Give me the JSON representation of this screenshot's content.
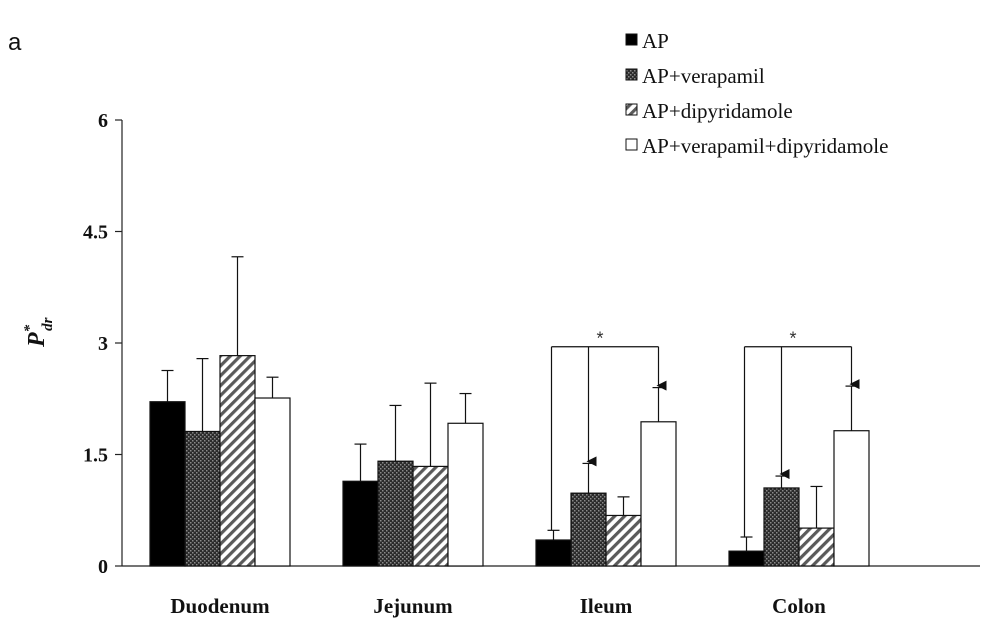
{
  "chart_data": {
    "type": "bar",
    "panel_label": "a",
    "ylabel": "P",
    "ylabel_superscript": "*",
    "ylabel_subscript": "dr",
    "xlabel": "",
    "ylim": [
      0,
      6
    ],
    "y_ticks": [
      "0",
      "1.5",
      "3",
      "4.5",
      "6"
    ],
    "grid": false,
    "legend_position": "top-right",
    "categories": [
      "Duodenum",
      "Jejunum",
      "Ileum",
      "Colon"
    ],
    "series": [
      {
        "name": "AP",
        "values": [
          2.21,
          1.14,
          0.35,
          0.2
        ],
        "errors": [
          0.42,
          0.5,
          0.13,
          0.19
        ],
        "fill": "black"
      },
      {
        "name": "AP+verapamil",
        "values": [
          1.81,
          1.41,
          0.98,
          1.05
        ],
        "errors": [
          0.98,
          0.75,
          0.4,
          0.16
        ],
        "fill": "dark-crosshatch"
      },
      {
        "name": "AP+dipyridamole",
        "values": [
          2.83,
          1.34,
          0.68,
          0.51
        ],
        "errors": [
          1.33,
          1.12,
          0.25,
          0.56
        ],
        "fill": "diagonal-hatch"
      },
      {
        "name": "AP+verapamil+dipyridamole",
        "values": [
          2.26,
          1.92,
          1.94,
          1.82
        ],
        "errors": [
          0.28,
          0.4,
          0.46,
          0.6
        ],
        "fill": "white"
      }
    ],
    "annotations": [
      {
        "category": "Ileum",
        "text": "*"
      },
      {
        "category": "Colon",
        "text": "*"
      }
    ]
  }
}
